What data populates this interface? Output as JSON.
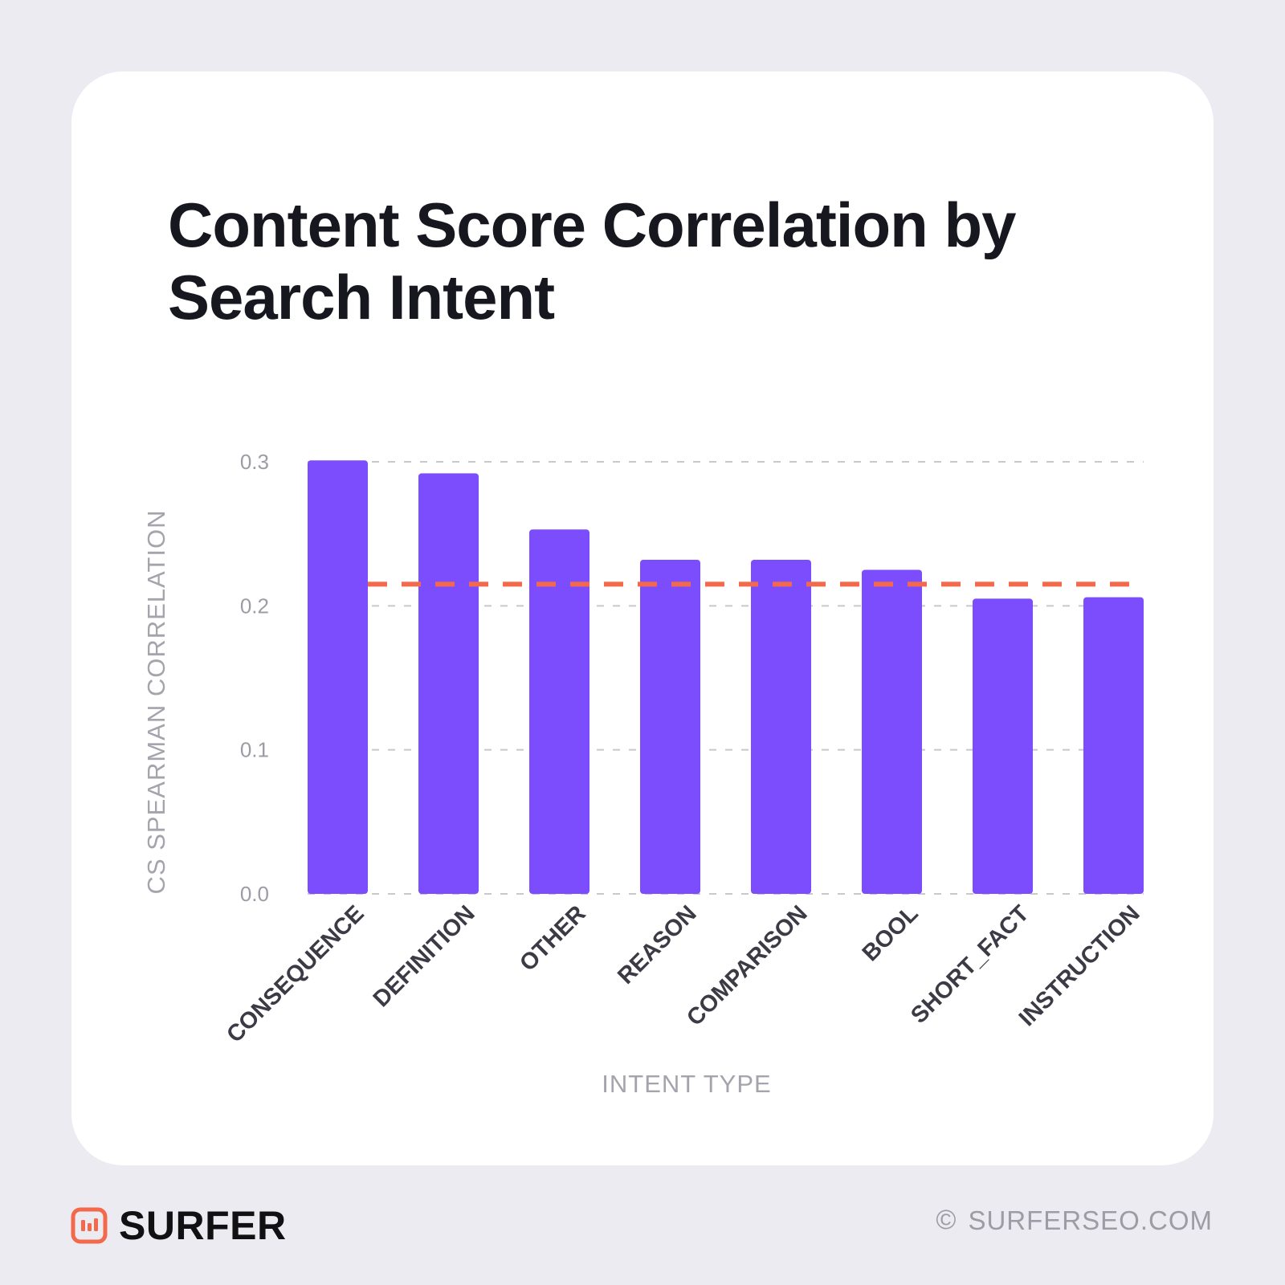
{
  "title": "Content Score Correlation by Search Intent",
  "footer": {
    "brand": "SURFER",
    "copyright_symbol": "©",
    "site": "SURFERSEO.COM",
    "logo_icon": "surfer-logo-icon",
    "accent_color": "#f26a4b"
  },
  "chart_data": {
    "type": "bar",
    "title": "Content Score Correlation by Search Intent",
    "xlabel": "INTENT TYPE",
    "ylabel": "CS SPEARMAN CORRELATION",
    "ylim": [
      0,
      0.3
    ],
    "yticks": [
      0.0,
      0.1,
      0.2,
      0.3
    ],
    "ytick_labels": [
      "0.0",
      "0.1",
      "0.2",
      "0.3"
    ],
    "grid": true,
    "categories": [
      "CONSEQUENCE",
      "DEFINITION",
      "OTHER",
      "REASON",
      "COMPARISON",
      "BOOL",
      "SHORT_FACT",
      "INSTRUCTION"
    ],
    "values": [
      0.301,
      0.292,
      0.253,
      0.232,
      0.232,
      0.225,
      0.205,
      0.206
    ],
    "reference_line": {
      "value": 0.215,
      "style": "dashed",
      "color": "#f26a4b"
    },
    "bar_color": "#7b4dfc"
  }
}
